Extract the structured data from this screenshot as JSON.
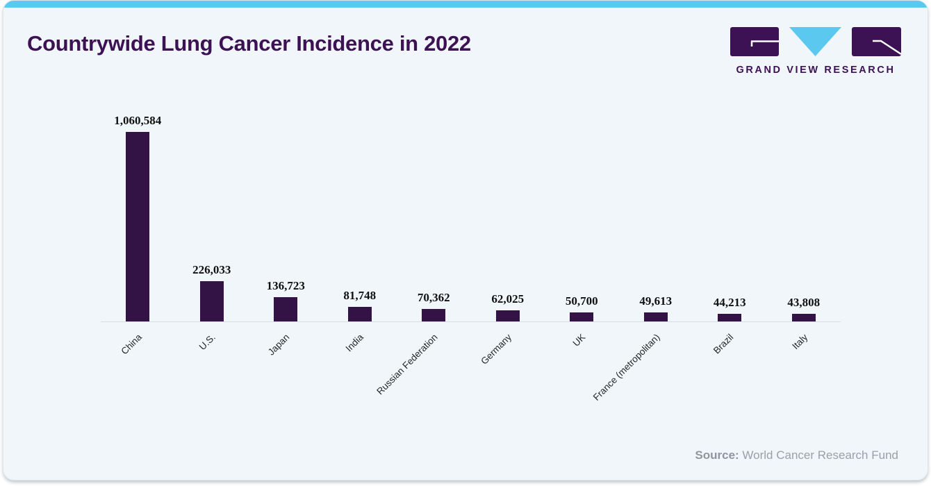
{
  "page": {
    "title": "Countrywide Lung Cancer Incidence in 2022",
    "source_label": "Source:",
    "source_text": " World Cancer Research Fund"
  },
  "logo": {
    "text": "GRAND VIEW RESEARCH"
  },
  "colors": {
    "accent_blue": "#5bc8f0",
    "brand_purple": "#3c1254",
    "bar_color": "#331245",
    "card_background": "#f0f6fa",
    "axis_line": "#d8dde2",
    "source_gray": "#9aa0a5"
  },
  "chart_data": {
    "type": "bar",
    "title": "Countrywide Lung Cancer Incidence in 2022",
    "xlabel": "",
    "ylabel": "",
    "categories": [
      "China",
      "U.S.",
      "Japan",
      "India",
      "Russian Federation",
      "Germany",
      "UK",
      "France (metropolitan)",
      "Brazil",
      "Italy"
    ],
    "values": [
      1060584,
      226033,
      136723,
      81748,
      70362,
      62025,
      50700,
      49613,
      44213,
      43808
    ],
    "value_labels": [
      "1,060,584",
      "226,033",
      "136,723",
      "81,748",
      "70,362",
      "62,025",
      "50,700",
      "49,613",
      "44,213",
      "43,808"
    ],
    "ylim": [
      0,
      1100000
    ],
    "grid": false,
    "legend": false,
    "bar_color": "#331245",
    "source": "World Cancer Research Fund"
  }
}
